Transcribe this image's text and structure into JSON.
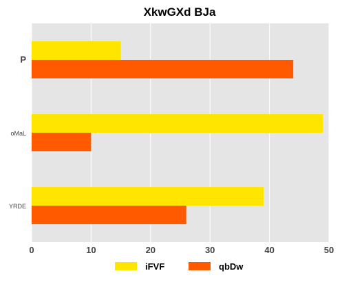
{
  "chart_data": {
    "type": "bar",
    "orientation": "horizontal",
    "title": "XkwGXd BJa",
    "categories": [
      "P",
      "oMaL",
      "YRDE"
    ],
    "series": [
      {
        "name": "iFVF",
        "color": "#FFE500",
        "values": [
          15,
          49,
          39
        ]
      },
      {
        "name": "qbDw",
        "color": "#FF5A00",
        "values": [
          44,
          10,
          26
        ]
      }
    ],
    "xlim": [
      0,
      50
    ],
    "xticks": [
      0,
      10,
      20,
      30,
      40,
      50
    ],
    "grid": true,
    "legend_position": "bottom-center",
    "background_color": "#E5E5E5",
    "grid_color": "#FFFFFF"
  }
}
